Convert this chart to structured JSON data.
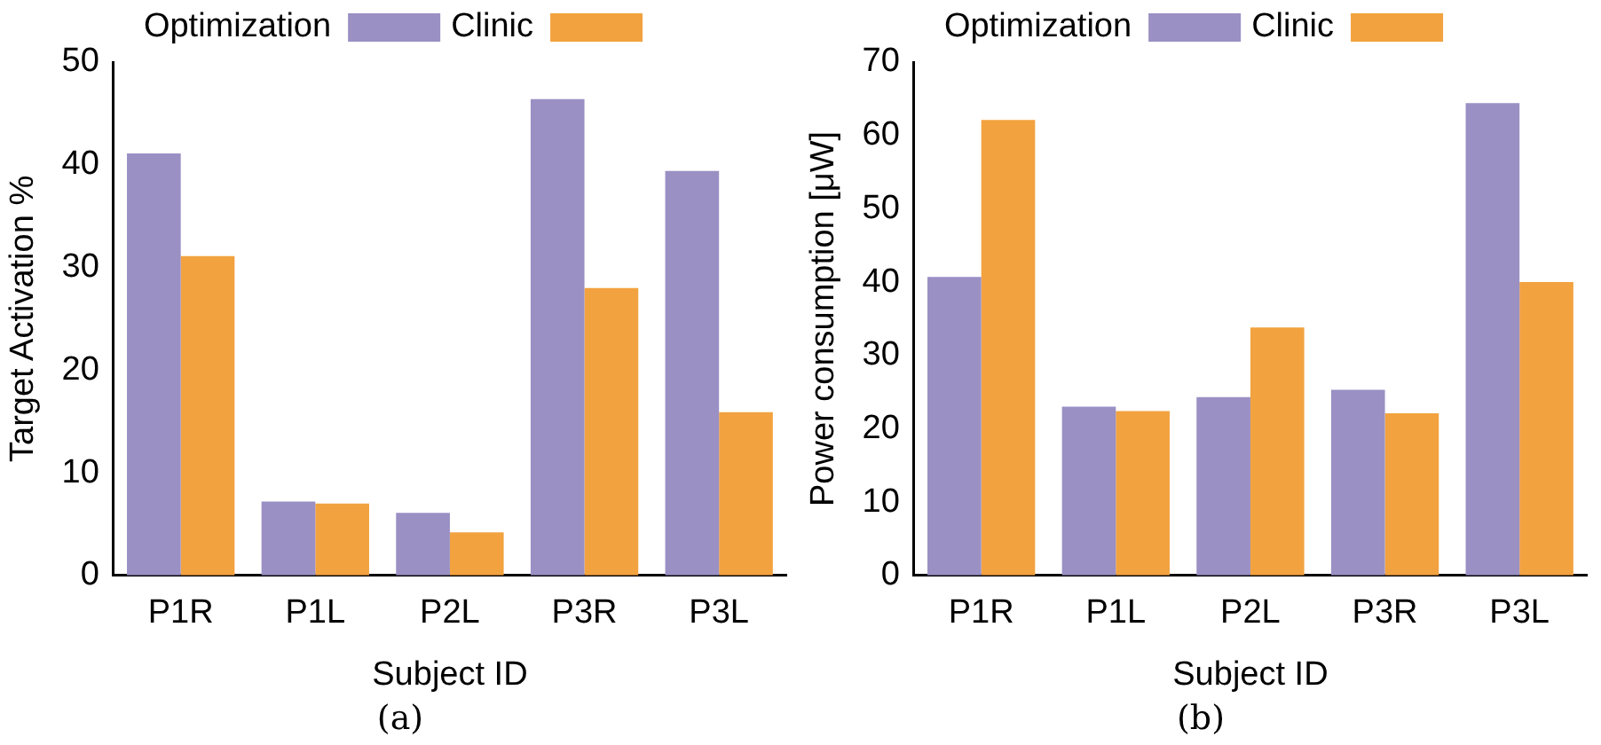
{
  "chart_data": [
    {
      "type": "bar",
      "ylabel": "Target Activation %",
      "xlabel": "Subject ID",
      "categories": [
        "P1R",
        "P1L",
        "P2L",
        "P3R",
        "P3L"
      ],
      "series": [
        {
          "name": "Optimization",
          "color": "#9a90c4",
          "values": [
            41.1,
            7.2,
            6.1,
            46.4,
            39.4
          ]
        },
        {
          "name": "Clinic",
          "color": "#f2a23f",
          "values": [
            31.1,
            7.0,
            4.2,
            28.0,
            15.9
          ]
        }
      ],
      "ylim": [
        0,
        50
      ],
      "yticks": [
        0,
        10,
        20,
        30,
        40,
        50
      ],
      "grid": false,
      "legend": "top",
      "annotations": [
        "(a)"
      ]
    },
    {
      "type": "bar",
      "ylabel": "Power consumption [μW]",
      "xlabel": "Subject ID",
      "categories": [
        "P1R",
        "P1L",
        "P2L",
        "P3R",
        "P3L"
      ],
      "series": [
        {
          "name": "Optimization",
          "color": "#9a90c4",
          "values": [
            40.7,
            23.0,
            24.3,
            25.3,
            64.4
          ]
        },
        {
          "name": "Clinic",
          "color": "#f2a23f",
          "values": [
            62.1,
            22.4,
            33.8,
            22.1,
            40.0
          ]
        }
      ],
      "ylim": [
        0,
        70
      ],
      "yticks": [
        0,
        10,
        20,
        30,
        40,
        50,
        60,
        70
      ],
      "grid": false,
      "legend": "top",
      "annotations": [
        "(b)"
      ]
    }
  ]
}
